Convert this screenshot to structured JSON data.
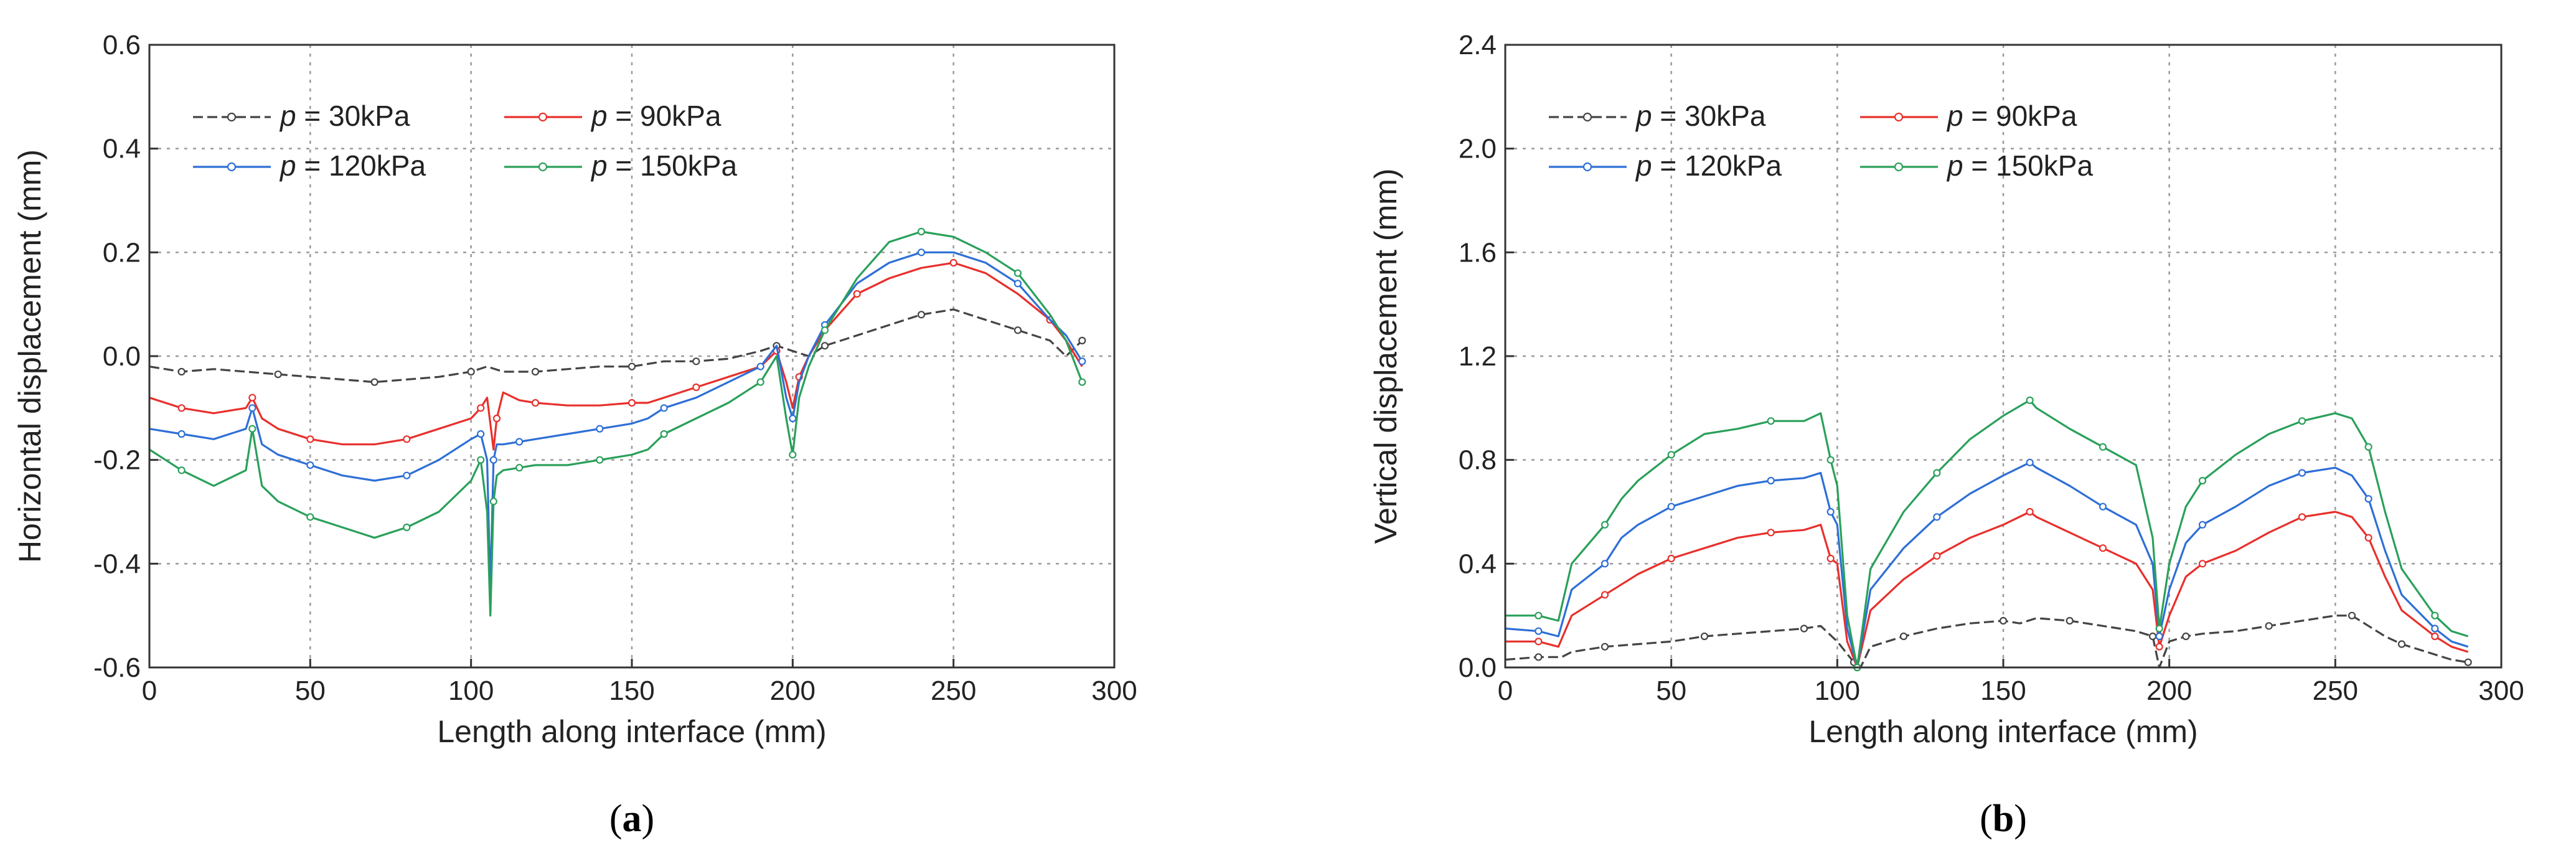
{
  "chart_data": [
    {
      "type": "line",
      "panel_label": "a",
      "xlabel": "Length along interface (mm)",
      "ylabel": "Horizontal  displacement (mm)",
      "xlim": [
        0,
        300
      ],
      "ylim": [
        -0.6,
        0.6
      ],
      "xticks": [
        "0",
        "50",
        "100",
        "150",
        "200",
        "250",
        "300"
      ],
      "yticks": [
        "-0.6",
        "-0.4",
        "-0.2",
        "0.0",
        "0.2",
        "0.4",
        "0.6"
      ],
      "grid": true,
      "legend": {
        "placement": "top-left",
        "columns": 2
      },
      "series": [
        {
          "name": "p = 30kPa",
          "p_symbol": "p",
          "p_value": " = 30kPa",
          "color": "#444444",
          "dash": true,
          "x": [
            0,
            10,
            20,
            30,
            40,
            50,
            60,
            70,
            80,
            90,
            100,
            105,
            110,
            120,
            130,
            140,
            150,
            155,
            160,
            170,
            180,
            190,
            195,
            200,
            205,
            210,
            220,
            230,
            240,
            250,
            260,
            270,
            280,
            285,
            290
          ],
          "y": [
            -0.02,
            -0.03,
            -0.025,
            -0.03,
            -0.035,
            -0.04,
            -0.045,
            -0.05,
            -0.045,
            -0.04,
            -0.03,
            -0.02,
            -0.03,
            -0.03,
            -0.025,
            -0.02,
            -0.02,
            -0.015,
            -0.01,
            -0.01,
            -0.005,
            0.01,
            0.02,
            0.01,
            0.0,
            0.02,
            0.04,
            0.06,
            0.08,
            0.09,
            0.07,
            0.05,
            0.03,
            0.0,
            0.03
          ]
        },
        {
          "name": "p = 90kPa",
          "p_symbol": "p",
          "p_value": " = 90kPa",
          "color": "#e8302c",
          "dash": false,
          "x": [
            0,
            10,
            20,
            30,
            32,
            35,
            40,
            50,
            60,
            70,
            80,
            90,
            100,
            103,
            105,
            107,
            108,
            110,
            115,
            120,
            130,
            140,
            150,
            155,
            160,
            170,
            180,
            190,
            195,
            198,
            200,
            202,
            205,
            210,
            220,
            230,
            240,
            250,
            260,
            270,
            280,
            285,
            290
          ],
          "y": [
            -0.08,
            -0.1,
            -0.11,
            -0.1,
            -0.08,
            -0.12,
            -0.14,
            -0.16,
            -0.17,
            -0.17,
            -0.16,
            -0.14,
            -0.12,
            -0.1,
            -0.08,
            -0.18,
            -0.12,
            -0.07,
            -0.085,
            -0.09,
            -0.095,
            -0.095,
            -0.09,
            -0.09,
            -0.08,
            -0.06,
            -0.04,
            -0.02,
            0.01,
            -0.05,
            -0.1,
            -0.04,
            0.0,
            0.05,
            0.12,
            0.15,
            0.17,
            0.18,
            0.16,
            0.12,
            0.07,
            0.03,
            -0.02
          ]
        },
        {
          "name": "p = 120kPa",
          "p_symbol": "p",
          "p_value": " = 120kPa",
          "color": "#2e6fd6",
          "dash": false,
          "x": [
            0,
            10,
            20,
            30,
            32,
            35,
            40,
            50,
            60,
            70,
            80,
            90,
            100,
            103,
            105,
            106,
            107,
            108,
            110,
            115,
            120,
            130,
            140,
            150,
            155,
            160,
            170,
            180,
            190,
            195,
            198,
            200,
            202,
            205,
            210,
            220,
            230,
            240,
            250,
            260,
            270,
            280,
            285,
            290
          ],
          "y": [
            -0.14,
            -0.15,
            -0.16,
            -0.14,
            -0.1,
            -0.17,
            -0.19,
            -0.21,
            -0.23,
            -0.24,
            -0.23,
            -0.2,
            -0.16,
            -0.15,
            -0.2,
            -0.45,
            -0.2,
            -0.17,
            -0.17,
            -0.165,
            -0.16,
            -0.15,
            -0.14,
            -0.13,
            -0.12,
            -0.1,
            -0.08,
            -0.05,
            -0.02,
            0.02,
            -0.08,
            -0.12,
            -0.05,
            0.0,
            0.06,
            0.14,
            0.18,
            0.2,
            0.2,
            0.18,
            0.14,
            0.07,
            0.04,
            -0.01
          ]
        },
        {
          "name": "p = 150kPa",
          "p_symbol": "p",
          "p_value": " = 150kPa",
          "color": "#2aa05a",
          "dash": false,
          "x": [
            0,
            10,
            20,
            30,
            32,
            35,
            40,
            50,
            60,
            70,
            80,
            90,
            100,
            103,
            105,
            106,
            107,
            108,
            110,
            115,
            120,
            130,
            140,
            150,
            155,
            160,
            170,
            180,
            190,
            195,
            198,
            200,
            202,
            205,
            210,
            220,
            230,
            240,
            250,
            260,
            270,
            280,
            285,
            290
          ],
          "y": [
            -0.18,
            -0.22,
            -0.25,
            -0.22,
            -0.14,
            -0.25,
            -0.28,
            -0.31,
            -0.33,
            -0.35,
            -0.33,
            -0.3,
            -0.24,
            -0.2,
            -0.3,
            -0.5,
            -0.28,
            -0.23,
            -0.22,
            -0.215,
            -0.21,
            -0.21,
            -0.2,
            -0.19,
            -0.18,
            -0.15,
            -0.12,
            -0.09,
            -0.05,
            0.0,
            -0.12,
            -0.19,
            -0.08,
            -0.02,
            0.05,
            0.15,
            0.22,
            0.24,
            0.23,
            0.2,
            0.16,
            0.08,
            0.03,
            -0.05
          ]
        }
      ]
    },
    {
      "type": "line",
      "panel_label": "b",
      "xlabel": "Length along interface (mm)",
      "ylabel": "Vertical  displacement (mm)",
      "xlim": [
        0,
        300
      ],
      "ylim": [
        0.0,
        2.4
      ],
      "xticks": [
        "0",
        "50",
        "100",
        "150",
        "200",
        "250",
        "300"
      ],
      "yticks": [
        "0.0",
        "0.4",
        "0.8",
        "1.2",
        "1.6",
        "2.0",
        "2.4"
      ],
      "grid": true,
      "legend": {
        "placement": "top-left",
        "columns": 2
      },
      "series": [
        {
          "name": "p = 30kPa",
          "p_symbol": "p",
          "p_value": " = 30kPa",
          "color": "#444444",
          "dash": true,
          "x": [
            0,
            10,
            17,
            20,
            30,
            40,
            50,
            60,
            70,
            80,
            90,
            95,
            100,
            105,
            107,
            110,
            120,
            130,
            140,
            150,
            155,
            160,
            170,
            180,
            190,
            195,
            197,
            200,
            205,
            210,
            220,
            230,
            240,
            250,
            255,
            260,
            265,
            270,
            280,
            285,
            290
          ],
          "y": [
            0.03,
            0.04,
            0.04,
            0.06,
            0.08,
            0.09,
            0.1,
            0.12,
            0.13,
            0.14,
            0.15,
            0.16,
            0.1,
            0.02,
            0.0,
            0.08,
            0.12,
            0.15,
            0.17,
            0.18,
            0.17,
            0.19,
            0.18,
            0.16,
            0.14,
            0.12,
            0.0,
            0.1,
            0.12,
            0.13,
            0.14,
            0.16,
            0.18,
            0.2,
            0.2,
            0.16,
            0.12,
            0.09,
            0.05,
            0.03,
            0.02
          ]
        },
        {
          "name": "p = 90kPa",
          "p_symbol": "p",
          "p_value": " = 90kPa",
          "color": "#e8302c",
          "dash": false,
          "x": [
            0,
            10,
            16,
            20,
            30,
            35,
            40,
            50,
            60,
            70,
            80,
            90,
            95,
            98,
            100,
            103,
            106,
            110,
            120,
            130,
            140,
            150,
            158,
            160,
            170,
            180,
            190,
            195,
            197,
            200,
            205,
            210,
            220,
            230,
            240,
            250,
            255,
            260,
            265,
            270,
            280,
            285,
            290
          ],
          "y": [
            0.1,
            0.1,
            0.08,
            0.2,
            0.28,
            0.32,
            0.36,
            0.42,
            0.46,
            0.5,
            0.52,
            0.53,
            0.55,
            0.42,
            0.4,
            0.1,
            0.0,
            0.22,
            0.34,
            0.43,
            0.5,
            0.55,
            0.6,
            0.58,
            0.52,
            0.46,
            0.4,
            0.3,
            0.08,
            0.2,
            0.35,
            0.4,
            0.45,
            0.52,
            0.58,
            0.6,
            0.58,
            0.5,
            0.35,
            0.22,
            0.12,
            0.08,
            0.06
          ]
        },
        {
          "name": "p = 120kPa",
          "p_symbol": "p",
          "p_value": " = 120kPa",
          "color": "#2e6fd6",
          "dash": false,
          "x": [
            0,
            10,
            16,
            20,
            30,
            35,
            40,
            50,
            60,
            70,
            80,
            90,
            95,
            98,
            100,
            103,
            106,
            110,
            120,
            130,
            140,
            150,
            158,
            160,
            170,
            180,
            190,
            195,
            197,
            200,
            205,
            210,
            220,
            230,
            240,
            250,
            255,
            260,
            265,
            270,
            280,
            285,
            290
          ],
          "y": [
            0.15,
            0.14,
            0.12,
            0.3,
            0.4,
            0.5,
            0.55,
            0.62,
            0.66,
            0.7,
            0.72,
            0.73,
            0.75,
            0.6,
            0.55,
            0.15,
            0.0,
            0.3,
            0.46,
            0.58,
            0.67,
            0.74,
            0.79,
            0.77,
            0.7,
            0.62,
            0.55,
            0.4,
            0.12,
            0.3,
            0.48,
            0.55,
            0.62,
            0.7,
            0.75,
            0.77,
            0.74,
            0.65,
            0.45,
            0.28,
            0.15,
            0.1,
            0.08
          ]
        },
        {
          "name": "p = 150kPa",
          "p_symbol": "p",
          "p_value": " = 150kPa",
          "color": "#2aa05a",
          "dash": false,
          "x": [
            0,
            10,
            16,
            20,
            30,
            35,
            40,
            50,
            60,
            70,
            80,
            90,
            95,
            98,
            100,
            103,
            106,
            110,
            120,
            130,
            140,
            150,
            158,
            160,
            170,
            180,
            190,
            195,
            197,
            200,
            205,
            210,
            220,
            230,
            240,
            250,
            255,
            260,
            265,
            270,
            280,
            285,
            290
          ],
          "y": [
            0.2,
            0.2,
            0.18,
            0.4,
            0.55,
            0.65,
            0.72,
            0.82,
            0.9,
            0.92,
            0.95,
            0.95,
            0.98,
            0.8,
            0.7,
            0.2,
            0.0,
            0.38,
            0.6,
            0.75,
            0.88,
            0.97,
            1.03,
            1.0,
            0.92,
            0.85,
            0.78,
            0.5,
            0.15,
            0.4,
            0.62,
            0.72,
            0.82,
            0.9,
            0.95,
            0.98,
            0.96,
            0.85,
            0.6,
            0.38,
            0.2,
            0.14,
            0.12
          ]
        }
      ]
    }
  ]
}
